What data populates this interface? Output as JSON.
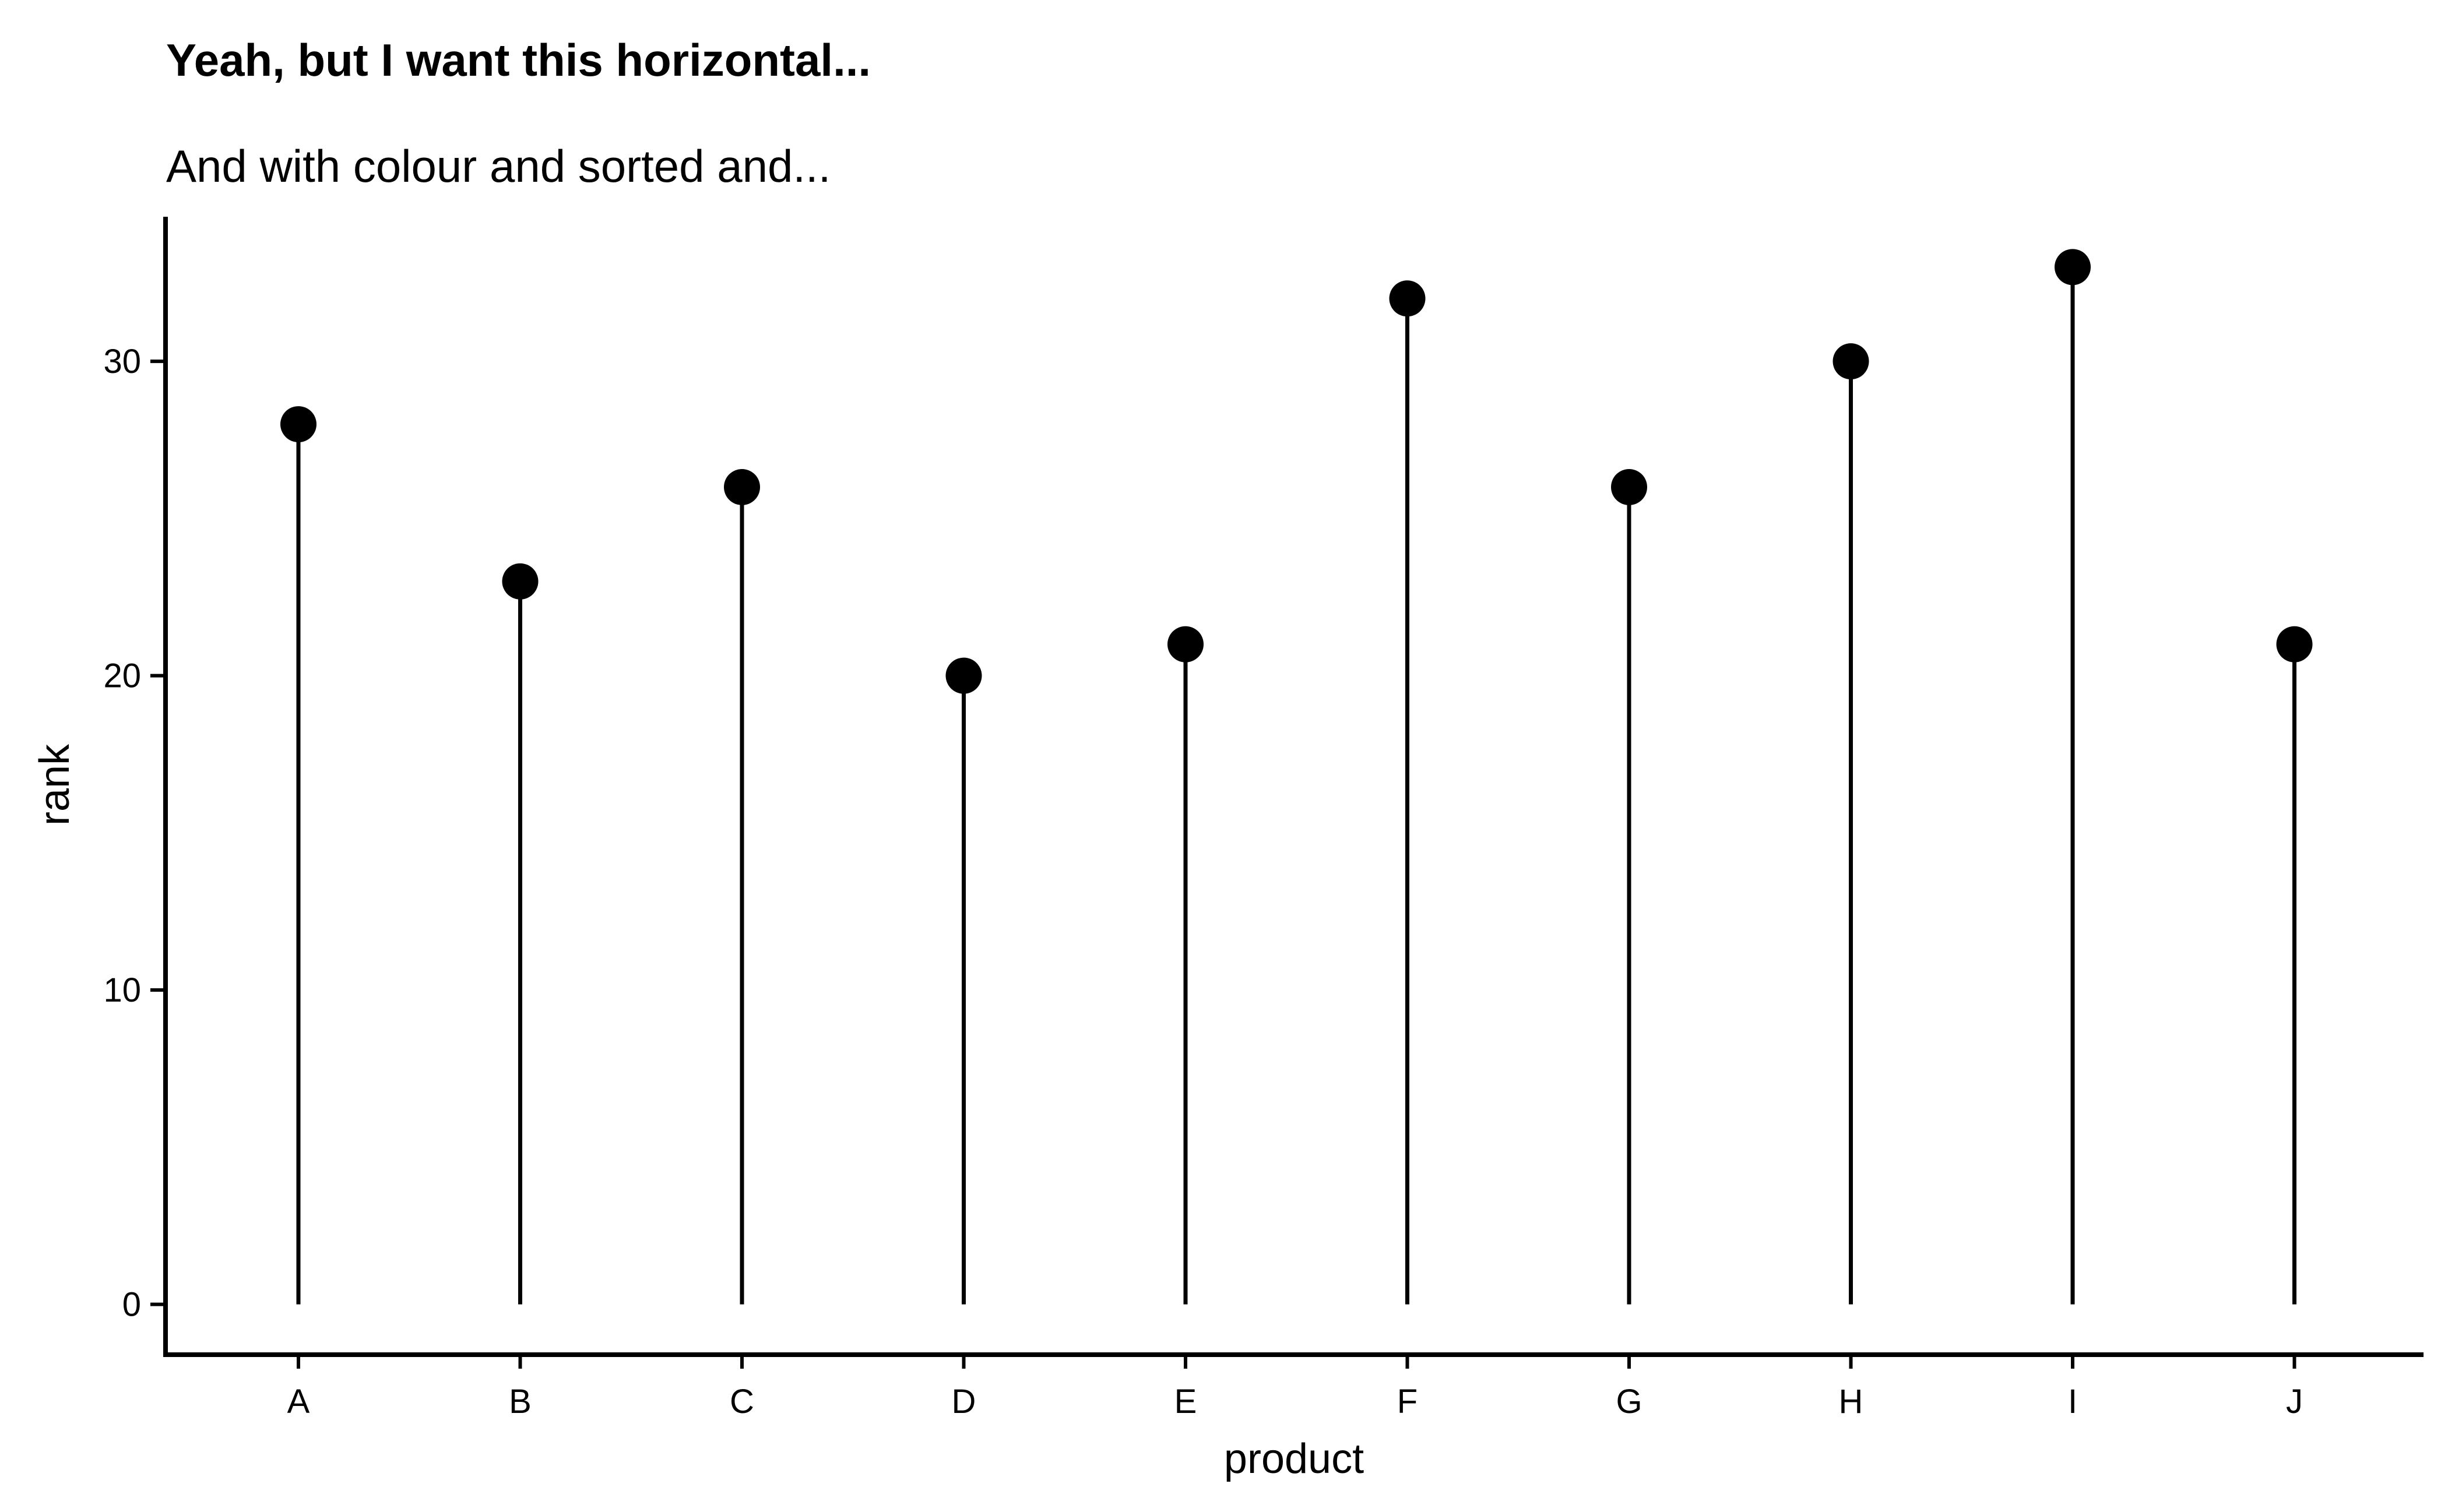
{
  "chart_data": {
    "type": "lollipop",
    "title": "Yeah, but I want this horizontal...",
    "subtitle": "And with colour and sorted and...",
    "xlabel": "product",
    "ylabel": "rank",
    "categories": [
      "A",
      "B",
      "C",
      "D",
      "E",
      "F",
      "G",
      "H",
      "I",
      "J"
    ],
    "values": [
      28,
      23,
      26,
      20,
      21,
      32,
      26,
      30,
      33,
      21
    ],
    "ylim": [
      -1.6,
      34.6
    ],
    "yticks": [
      0,
      10,
      20,
      30
    ],
    "grid": false,
    "colors": {
      "points": "#000000",
      "stems": "#000000",
      "axes": "#000000",
      "background": "#ffffff"
    }
  }
}
